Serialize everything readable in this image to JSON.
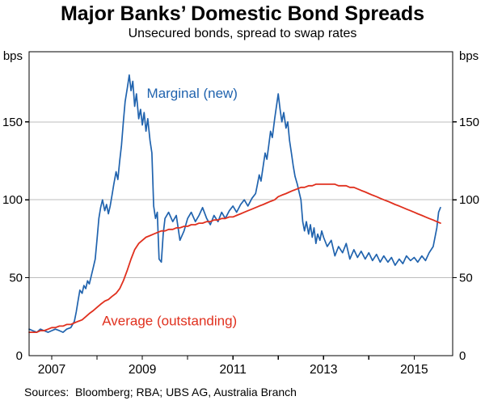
{
  "header": {
    "title": "Major Banks’ Domestic Bond Spreads",
    "subtitle": "Unsecured bonds, spread to swap rates"
  },
  "footer": {
    "sources": "Sources:  Bloomberg; RBA; UBS AG, Australia Branch"
  },
  "chart_data": {
    "type": "line",
    "title": "Major Banks’ Domestic Bond Spreads",
    "subtitle": "Unsecured bonds, spread to swap rates",
    "x": {
      "min": 2006.5,
      "max": 2015.85,
      "tick_years": [
        2007,
        2008,
        2009,
        2010,
        2011,
        2012,
        2013,
        2014,
        2015
      ],
      "label_years": [
        2007,
        2009,
        2011,
        2013,
        2015
      ]
    },
    "y": {
      "min": 0,
      "max": 195,
      "ticks": [
        0,
        50,
        100,
        150
      ],
      "unit": "bps"
    },
    "grid_values": [
      50,
      100,
      150
    ],
    "grid_on": true,
    "colors": {
      "grid": "#bdbdbd",
      "axis": "#000000",
      "marginal": "#2063ae",
      "average": "#e0301e"
    },
    "annotations": [
      {
        "text": "Marginal (new)",
        "x": 2010.1,
        "y": 168,
        "color": "#2063ae",
        "size": 17
      },
      {
        "text": "Average (outstanding)",
        "x": 2009.6,
        "y": 22,
        "color": "#e0301e",
        "size": 17
      }
    ],
    "series": [
      {
        "name": "Marginal (new)",
        "color": "#2063ae",
        "width": 1.7,
        "points": [
          [
            2006.5,
            17
          ],
          [
            2006.58,
            16
          ],
          [
            2006.67,
            15
          ],
          [
            2006.75,
            17
          ],
          [
            2006.83,
            16
          ],
          [
            2006.92,
            15
          ],
          [
            2007.0,
            16
          ],
          [
            2007.08,
            17
          ],
          [
            2007.17,
            16
          ],
          [
            2007.25,
            15
          ],
          [
            2007.33,
            17
          ],
          [
            2007.42,
            18
          ],
          [
            2007.5,
            22
          ],
          [
            2007.54,
            28
          ],
          [
            2007.58,
            35
          ],
          [
            2007.62,
            42
          ],
          [
            2007.67,
            40
          ],
          [
            2007.71,
            45
          ],
          [
            2007.75,
            43
          ],
          [
            2007.79,
            48
          ],
          [
            2007.83,
            46
          ],
          [
            2007.88,
            52
          ],
          [
            2007.92,
            57
          ],
          [
            2007.96,
            62
          ],
          [
            2008.0,
            75
          ],
          [
            2008.04,
            88
          ],
          [
            2008.08,
            95
          ],
          [
            2008.12,
            100
          ],
          [
            2008.17,
            93
          ],
          [
            2008.21,
            97
          ],
          [
            2008.25,
            91
          ],
          [
            2008.29,
            96
          ],
          [
            2008.33,
            103
          ],
          [
            2008.37,
            110
          ],
          [
            2008.42,
            118
          ],
          [
            2008.46,
            113
          ],
          [
            2008.5,
            125
          ],
          [
            2008.54,
            135
          ],
          [
            2008.58,
            150
          ],
          [
            2008.62,
            163
          ],
          [
            2008.67,
            172
          ],
          [
            2008.71,
            180
          ],
          [
            2008.75,
            170
          ],
          [
            2008.79,
            176
          ],
          [
            2008.83,
            160
          ],
          [
            2008.87,
            168
          ],
          [
            2008.92,
            152
          ],
          [
            2008.96,
            158
          ],
          [
            2009.0,
            148
          ],
          [
            2009.04,
            156
          ],
          [
            2009.08,
            144
          ],
          [
            2009.12,
            152
          ],
          [
            2009.17,
            138
          ],
          [
            2009.21,
            130
          ],
          [
            2009.25,
            96
          ],
          [
            2009.29,
            88
          ],
          [
            2009.33,
            92
          ],
          [
            2009.37,
            62
          ],
          [
            2009.42,
            60
          ],
          [
            2009.46,
            78
          ],
          [
            2009.5,
            88
          ],
          [
            2009.58,
            92
          ],
          [
            2009.67,
            86
          ],
          [
            2009.75,
            90
          ],
          [
            2009.83,
            74
          ],
          [
            2009.92,
            80
          ],
          [
            2010.0,
            88
          ],
          [
            2010.08,
            92
          ],
          [
            2010.17,
            86
          ],
          [
            2010.25,
            90
          ],
          [
            2010.33,
            95
          ],
          [
            2010.42,
            88
          ],
          [
            2010.5,
            84
          ],
          [
            2010.58,
            90
          ],
          [
            2010.67,
            86
          ],
          [
            2010.75,
            92
          ],
          [
            2010.83,
            88
          ],
          [
            2010.92,
            93
          ],
          [
            2011.0,
            96
          ],
          [
            2011.08,
            92
          ],
          [
            2011.17,
            97
          ],
          [
            2011.25,
            100
          ],
          [
            2011.33,
            96
          ],
          [
            2011.42,
            101
          ],
          [
            2011.5,
            104
          ],
          [
            2011.54,
            110
          ],
          [
            2011.58,
            116
          ],
          [
            2011.62,
            112
          ],
          [
            2011.67,
            122
          ],
          [
            2011.71,
            130
          ],
          [
            2011.75,
            126
          ],
          [
            2011.79,
            135
          ],
          [
            2011.83,
            144
          ],
          [
            2011.87,
            140
          ],
          [
            2011.92,
            152
          ],
          [
            2011.96,
            160
          ],
          [
            2012.0,
            168
          ],
          [
            2012.04,
            158
          ],
          [
            2012.08,
            150
          ],
          [
            2012.12,
            156
          ],
          [
            2012.17,
            146
          ],
          [
            2012.21,
            150
          ],
          [
            2012.25,
            138
          ],
          [
            2012.29,
            130
          ],
          [
            2012.33,
            122
          ],
          [
            2012.37,
            115
          ],
          [
            2012.42,
            110
          ],
          [
            2012.46,
            105
          ],
          [
            2012.5,
            100
          ],
          [
            2012.54,
            86
          ],
          [
            2012.58,
            80
          ],
          [
            2012.62,
            86
          ],
          [
            2012.67,
            78
          ],
          [
            2012.71,
            84
          ],
          [
            2012.75,
            76
          ],
          [
            2012.79,
            82
          ],
          [
            2012.83,
            72
          ],
          [
            2012.87,
            78
          ],
          [
            2012.92,
            74
          ],
          [
            2012.96,
            80
          ],
          [
            2013.0,
            76
          ],
          [
            2013.08,
            70
          ],
          [
            2013.17,
            74
          ],
          [
            2013.25,
            64
          ],
          [
            2013.33,
            70
          ],
          [
            2013.42,
            66
          ],
          [
            2013.5,
            72
          ],
          [
            2013.58,
            62
          ],
          [
            2013.67,
            68
          ],
          [
            2013.75,
            63
          ],
          [
            2013.83,
            67
          ],
          [
            2013.92,
            62
          ],
          [
            2014.0,
            66
          ],
          [
            2014.08,
            61
          ],
          [
            2014.17,
            65
          ],
          [
            2014.25,
            60
          ],
          [
            2014.33,
            64
          ],
          [
            2014.42,
            60
          ],
          [
            2014.5,
            63
          ],
          [
            2014.58,
            58
          ],
          [
            2014.67,
            62
          ],
          [
            2014.75,
            59
          ],
          [
            2014.83,
            64
          ],
          [
            2014.92,
            61
          ],
          [
            2015.0,
            63
          ],
          [
            2015.08,
            60
          ],
          [
            2015.17,
            64
          ],
          [
            2015.25,
            61
          ],
          [
            2015.33,
            66
          ],
          [
            2015.42,
            70
          ],
          [
            2015.5,
            82
          ],
          [
            2015.54,
            92
          ],
          [
            2015.58,
            95
          ]
        ]
      },
      {
        "name": "Average (outstanding)",
        "color": "#e0301e",
        "width": 1.8,
        "points": [
          [
            2006.5,
            15
          ],
          [
            2006.58,
            15
          ],
          [
            2006.67,
            15
          ],
          [
            2006.75,
            16
          ],
          [
            2006.83,
            16
          ],
          [
            2006.92,
            17
          ],
          [
            2007.0,
            18
          ],
          [
            2007.08,
            18
          ],
          [
            2007.17,
            19
          ],
          [
            2007.25,
            19
          ],
          [
            2007.33,
            20
          ],
          [
            2007.42,
            20
          ],
          [
            2007.5,
            21
          ],
          [
            2007.58,
            22
          ],
          [
            2007.67,
            23
          ],
          [
            2007.75,
            25
          ],
          [
            2007.83,
            27
          ],
          [
            2007.92,
            29
          ],
          [
            2008.0,
            31
          ],
          [
            2008.08,
            33
          ],
          [
            2008.17,
            35
          ],
          [
            2008.25,
            36
          ],
          [
            2008.33,
            38
          ],
          [
            2008.42,
            40
          ],
          [
            2008.5,
            43
          ],
          [
            2008.58,
            48
          ],
          [
            2008.67,
            55
          ],
          [
            2008.75,
            62
          ],
          [
            2008.83,
            68
          ],
          [
            2008.92,
            72
          ],
          [
            2009.0,
            74
          ],
          [
            2009.08,
            76
          ],
          [
            2009.17,
            77
          ],
          [
            2009.25,
            78
          ],
          [
            2009.33,
            79
          ],
          [
            2009.42,
            80
          ],
          [
            2009.5,
            80
          ],
          [
            2009.58,
            81
          ],
          [
            2009.67,
            81
          ],
          [
            2009.75,
            82
          ],
          [
            2009.83,
            82
          ],
          [
            2009.92,
            83
          ],
          [
            2010.0,
            83
          ],
          [
            2010.08,
            84
          ],
          [
            2010.17,
            84
          ],
          [
            2010.25,
            85
          ],
          [
            2010.33,
            85
          ],
          [
            2010.42,
            86
          ],
          [
            2010.5,
            86
          ],
          [
            2010.58,
            87
          ],
          [
            2010.67,
            87
          ],
          [
            2010.75,
            88
          ],
          [
            2010.83,
            88
          ],
          [
            2010.92,
            89
          ],
          [
            2011.0,
            89
          ],
          [
            2011.08,
            90
          ],
          [
            2011.17,
            91
          ],
          [
            2011.25,
            92
          ],
          [
            2011.33,
            93
          ],
          [
            2011.42,
            94
          ],
          [
            2011.5,
            95
          ],
          [
            2011.58,
            96
          ],
          [
            2011.67,
            97
          ],
          [
            2011.75,
            98
          ],
          [
            2011.83,
            99
          ],
          [
            2011.92,
            100
          ],
          [
            2012.0,
            102
          ],
          [
            2012.08,
            103
          ],
          [
            2012.17,
            104
          ],
          [
            2012.25,
            105
          ],
          [
            2012.33,
            106
          ],
          [
            2012.42,
            107
          ],
          [
            2012.5,
            108
          ],
          [
            2012.58,
            108
          ],
          [
            2012.67,
            109
          ],
          [
            2012.75,
            109
          ],
          [
            2012.83,
            110
          ],
          [
            2012.92,
            110
          ],
          [
            2013.0,
            110
          ],
          [
            2013.08,
            110
          ],
          [
            2013.17,
            110
          ],
          [
            2013.25,
            110
          ],
          [
            2013.33,
            109
          ],
          [
            2013.42,
            109
          ],
          [
            2013.5,
            109
          ],
          [
            2013.58,
            108
          ],
          [
            2013.67,
            108
          ],
          [
            2013.75,
            107
          ],
          [
            2013.83,
            106
          ],
          [
            2013.92,
            105
          ],
          [
            2014.0,
            104
          ],
          [
            2014.08,
            103
          ],
          [
            2014.17,
            102
          ],
          [
            2014.25,
            101
          ],
          [
            2014.33,
            100
          ],
          [
            2014.42,
            99
          ],
          [
            2014.5,
            98
          ],
          [
            2014.58,
            97
          ],
          [
            2014.67,
            96
          ],
          [
            2014.75,
            95
          ],
          [
            2014.83,
            94
          ],
          [
            2014.92,
            93
          ],
          [
            2015.0,
            92
          ],
          [
            2015.08,
            91
          ],
          [
            2015.17,
            90
          ],
          [
            2015.25,
            89
          ],
          [
            2015.33,
            88
          ],
          [
            2015.42,
            87
          ],
          [
            2015.5,
            86
          ],
          [
            2015.58,
            85
          ]
        ]
      }
    ]
  }
}
